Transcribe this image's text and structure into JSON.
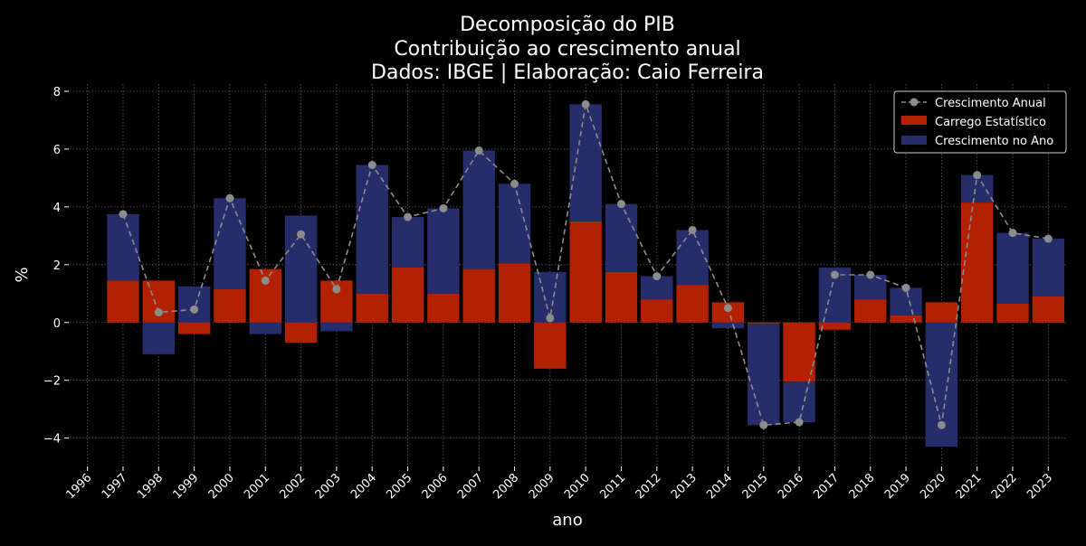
{
  "chart_data": {
    "type": "bar",
    "title_lines": [
      "Decomposição do PIB",
      "Contribuição ao crescimento anual",
      "Dados: IBGE | Elaboração: Caio Ferreira"
    ],
    "xlabel": "ano",
    "ylabel": "%",
    "categories": [
      "1996",
      "1997",
      "1998",
      "1999",
      "2000",
      "2001",
      "2002",
      "2003",
      "2004",
      "2005",
      "2006",
      "2007",
      "2008",
      "2009",
      "2010",
      "2011",
      "2012",
      "2013",
      "2014",
      "2015",
      "2016",
      "2017",
      "2018",
      "2019",
      "2020",
      "2021",
      "2022",
      "2023"
    ],
    "yticks": [
      -4,
      -2,
      0,
      2,
      4,
      6,
      8
    ],
    "ytick_labels": [
      "−4",
      "−2",
      "0",
      "2",
      "4",
      "6",
      "8"
    ],
    "ylim": [
      -4.95,
      8.25
    ],
    "grid": true,
    "legend_position": "top-right",
    "series": [
      {
        "name": "Crescimento Anual",
        "kind": "line",
        "style": "dashed-with-markers",
        "color": "#8c8c8c",
        "values": [
          null,
          3.75,
          0.35,
          0.45,
          4.3,
          1.45,
          3.05,
          1.15,
          5.45,
          3.65,
          3.95,
          5.95,
          4.8,
          0.15,
          7.55,
          4.1,
          1.6,
          3.2,
          0.5,
          -3.55,
          -3.45,
          1.65,
          1.65,
          1.2,
          -3.55,
          5.1,
          3.1,
          2.9
        ]
      },
      {
        "name": "Carrego Estatístico",
        "kind": "bar",
        "color": "#b22200",
        "values": [
          null,
          1.45,
          1.45,
          -0.4,
          1.15,
          1.85,
          -0.7,
          1.45,
          1.0,
          1.9,
          1.0,
          1.85,
          2.05,
          -1.6,
          3.5,
          1.75,
          0.8,
          1.3,
          0.7,
          -0.05,
          -2.05,
          -0.25,
          0.8,
          0.25,
          0.7,
          4.15,
          0.65,
          0.9
        ]
      },
      {
        "name": "Crescimento no Ano",
        "kind": "bar",
        "color": "#272c6a",
        "values": [
          null,
          2.3,
          -1.1,
          1.25,
          3.15,
          -0.4,
          3.7,
          -0.3,
          4.45,
          1.75,
          2.95,
          4.1,
          2.75,
          1.75,
          4.05,
          2.35,
          0.8,
          1.9,
          -0.2,
          -3.5,
          -1.4,
          1.9,
          0.85,
          0.95,
          -4.3,
          0.95,
          2.45,
          2.0
        ]
      }
    ]
  }
}
